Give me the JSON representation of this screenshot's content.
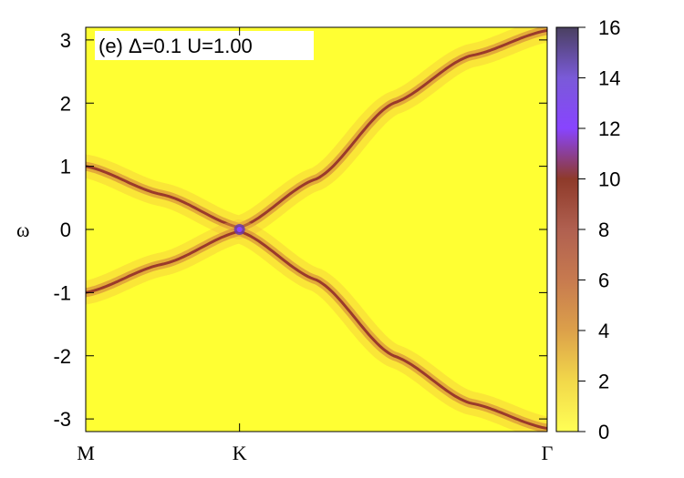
{
  "chart_data": {
    "type": "heatmap",
    "panel_label": "(e)",
    "annotation": "(e)  Δ=0.1  U=1.00",
    "ylabel": "ω",
    "xlabel": "",
    "x_ticks": [
      "M",
      "K",
      "Γ"
    ],
    "x_tick_positions": [
      0,
      1,
      3
    ],
    "xlim": [
      0,
      3
    ],
    "ylim": [
      -3.2,
      3.2
    ],
    "y_ticks": [
      -3,
      -2,
      -1,
      0,
      1,
      2,
      3
    ],
    "colorbar": {
      "range": [
        0,
        16
      ],
      "ticks": [
        0,
        2,
        4,
        6,
        8,
        10,
        12,
        14,
        16
      ],
      "colors": [
        "#ffff55",
        "#f2d84a",
        "#dca04a",
        "#c77a4f",
        "#b06050",
        "#8e3a2a",
        "#8844ff",
        "#7a5ad8",
        "#4a4060"
      ]
    },
    "background_level": 0.1,
    "bands": [
      {
        "name": "upper band",
        "path": [
          [
            0,
            1.0
          ],
          [
            0.5,
            0.55
          ],
          [
            1,
            0.03
          ],
          [
            1.5,
            0.8
          ],
          [
            2.0,
            2.0
          ],
          [
            2.5,
            2.75
          ],
          [
            3,
            3.15
          ]
        ],
        "peak_max": 15,
        "peak_min": 4
      },
      {
        "name": "lower band",
        "path": [
          [
            0,
            -1.0
          ],
          [
            0.5,
            -0.55
          ],
          [
            1,
            -0.03
          ],
          [
            1.5,
            -0.8
          ],
          [
            2.0,
            -2.0
          ],
          [
            2.5,
            -2.75
          ],
          [
            3,
            -3.15
          ]
        ],
        "peak_max": 15,
        "peak_min": 4
      }
    ]
  }
}
